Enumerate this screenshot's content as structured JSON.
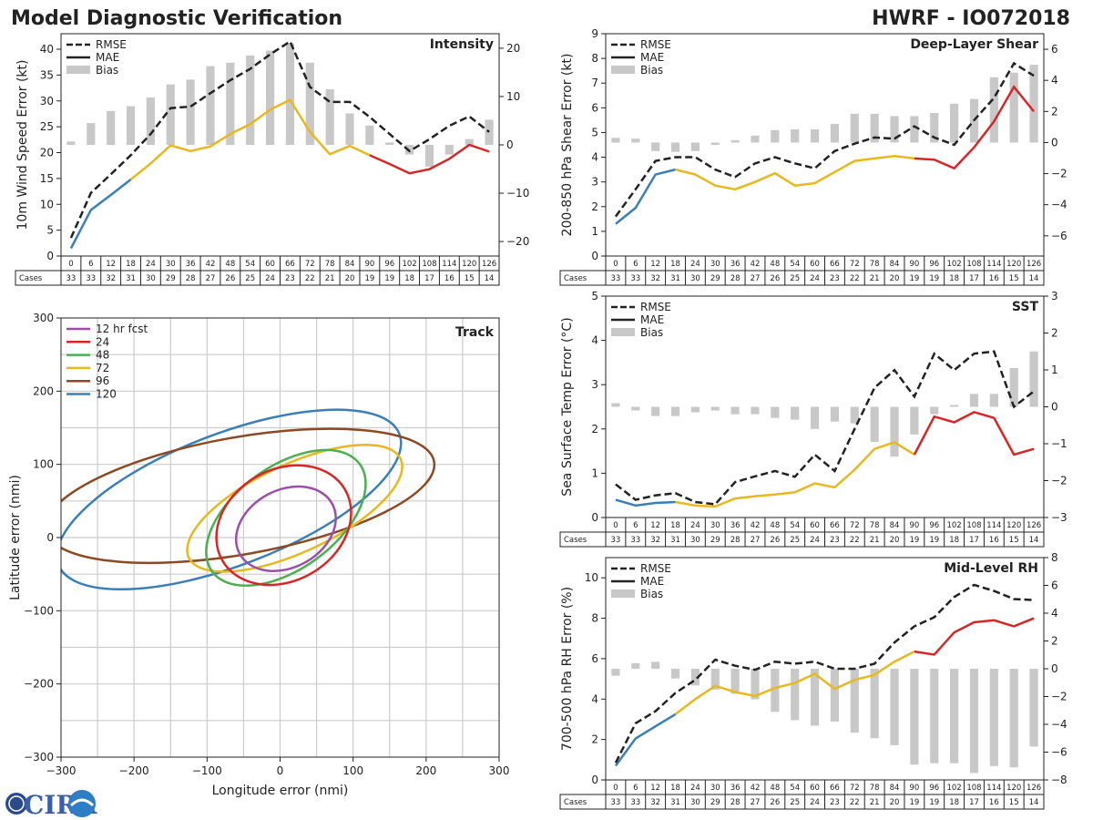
{
  "header": {
    "title": "Model Diagnostic Verification",
    "storm": "HWRF - IO072018"
  },
  "legend_labels": {
    "rmse": "RMSE",
    "mae": "MAE",
    "bias": "Bias"
  },
  "colors": {
    "rmse": "#222222",
    "bias": "#c8c8c8",
    "mae_early": "#3a7fb8",
    "mae_mid": "#e8b820",
    "mae_late": "#d62728",
    "track": {
      "12": "#9b4fa8",
      "24": "#d62728",
      "48": "#4caf50",
      "72": "#e8b820",
      "96": "#8b4a24",
      "120": "#3a7fb8"
    }
  },
  "table": {
    "row_label": "Cases",
    "lead_hours": [
      0,
      6,
      12,
      18,
      24,
      30,
      36,
      42,
      48,
      54,
      60,
      66,
      72,
      78,
      84,
      90,
      96,
      102,
      108,
      114,
      120,
      126
    ],
    "cases": [
      33,
      33,
      32,
      31,
      30,
      29,
      28,
      27,
      26,
      25,
      24,
      23,
      22,
      21,
      20,
      19,
      19,
      18,
      17,
      16,
      15,
      14
    ]
  },
  "logo": {
    "text": "CIRA"
  },
  "chart_data": [
    {
      "id": "intensity",
      "type": "line",
      "title": "Intensity",
      "ylabel": "10m Wind Speed Error (kt)",
      "ylim": [
        0,
        43
      ],
      "yticks": [
        0,
        5,
        10,
        15,
        20,
        25,
        30,
        35,
        40
      ],
      "y2lim": [
        -23,
        23
      ],
      "y2ticks": [
        -20,
        -10,
        0,
        10,
        20
      ],
      "mae_split": [
        3,
        15
      ],
      "rmse": [
        3.5,
        12.2,
        15.8,
        19.5,
        23.6,
        28.6,
        28.9,
        31.5,
        34.0,
        36.2,
        39.0,
        41.5,
        32.7,
        29.8,
        29.8,
        26.9,
        23.6,
        20.3,
        22.6,
        25.2,
        27.0,
        24.0
      ],
      "mae": [
        1.5,
        8.9,
        11.8,
        14.8,
        17.9,
        21.4,
        20.3,
        21.2,
        23.6,
        25.5,
        28.3,
        30.2,
        24.0,
        19.7,
        21.3,
        19.5,
        17.8,
        16.0,
        16.8,
        18.8,
        21.5,
        20.2
      ],
      "bias": [
        0.7,
        4.5,
        7.0,
        8.0,
        9.8,
        12.5,
        13.5,
        16.3,
        17.0,
        18.5,
        19.5,
        21.0,
        17.0,
        11.5,
        6.5,
        4.0,
        0.5,
        -2.0,
        -4.5,
        -2.0,
        1.2,
        5.2
      ]
    },
    {
      "id": "shear",
      "type": "line",
      "title": "Deep-Layer Shear",
      "ylabel": "200-850 hPa Shear Error (kt)",
      "ylim": [
        0,
        9
      ],
      "yticks": [
        0,
        1,
        2,
        3,
        4,
        5,
        6,
        7,
        8,
        9
      ],
      "y2lim": [
        -7.3,
        7.0
      ],
      "y2ticks": [
        -6,
        -4,
        -2,
        0,
        2,
        4,
        6
      ],
      "mae_split": [
        3,
        15
      ],
      "rmse": [
        1.6,
        2.7,
        3.85,
        4.0,
        4.0,
        3.5,
        3.2,
        3.75,
        4.0,
        3.75,
        3.55,
        4.25,
        4.55,
        4.8,
        4.75,
        5.25,
        4.8,
        4.5,
        5.5,
        6.4,
        7.8,
        7.3
      ],
      "mae": [
        1.3,
        1.95,
        3.3,
        3.5,
        3.3,
        2.85,
        2.7,
        3.0,
        3.35,
        2.85,
        2.95,
        3.4,
        3.85,
        3.95,
        4.05,
        3.95,
        3.9,
        3.55,
        4.4,
        5.45,
        6.85,
        5.85
      ],
      "bias": [
        0.3,
        0.25,
        -0.55,
        -0.6,
        -0.55,
        -0.15,
        0.15,
        0.45,
        0.8,
        0.85,
        0.85,
        1.2,
        1.85,
        1.85,
        1.7,
        1.7,
        1.9,
        2.5,
        2.8,
        4.2,
        4.5,
        5.0
      ]
    },
    {
      "id": "sst",
      "type": "line",
      "title": "SST",
      "ylabel": "Sea Surface Temp Error (°C)",
      "ylim": [
        0,
        5
      ],
      "yticks": [
        0,
        1,
        2,
        3,
        4,
        5
      ],
      "y2lim": [
        -3,
        3
      ],
      "y2ticks": [
        -3,
        -2,
        -1,
        0,
        1,
        2,
        3
      ],
      "mae_split": [
        3,
        15
      ],
      "rmse": [
        0.75,
        0.4,
        0.5,
        0.55,
        0.35,
        0.3,
        0.8,
        0.93,
        1.05,
        0.92,
        1.42,
        1.05,
        2.0,
        2.93,
        3.33,
        2.73,
        3.7,
        3.33,
        3.7,
        3.75,
        2.5,
        2.85
      ],
      "mae": [
        0.4,
        0.27,
        0.33,
        0.35,
        0.27,
        0.25,
        0.43,
        0.48,
        0.52,
        0.57,
        0.77,
        0.68,
        1.08,
        1.55,
        1.7,
        1.42,
        2.28,
        2.15,
        2.38,
        2.25,
        1.42,
        1.55
      ],
      "bias": [
        0.1,
        -0.1,
        -0.25,
        -0.25,
        -0.15,
        -0.1,
        -0.2,
        -0.2,
        -0.3,
        -0.35,
        -0.6,
        -0.4,
        -0.45,
        -0.95,
        -1.35,
        -0.75,
        -0.2,
        0.05,
        0.35,
        0.35,
        1.05,
        1.5
      ]
    },
    {
      "id": "rh",
      "type": "line",
      "title": "Mid-Level RH",
      "ylabel": "700-500 hPa RH Error (%)",
      "ylim": [
        0,
        11
      ],
      "yticks": [
        0,
        2,
        4,
        6,
        8,
        10
      ],
      "y2lim": [
        -8,
        8
      ],
      "y2ticks": [
        -8,
        -6,
        -4,
        -2,
        0,
        2,
        4,
        6,
        8
      ],
      "mae_split": [
        3,
        15
      ],
      "rmse": [
        0.85,
        2.8,
        3.4,
        4.3,
        4.95,
        5.95,
        5.65,
        5.45,
        5.85,
        5.75,
        5.85,
        5.5,
        5.5,
        5.75,
        6.8,
        7.6,
        8.05,
        9.05,
        9.65,
        9.35,
        8.95,
        8.9
      ],
      "mae": [
        0.7,
        2.05,
        2.65,
        3.25,
        4.0,
        4.65,
        4.35,
        4.15,
        4.55,
        4.8,
        5.25,
        4.5,
        4.95,
        5.2,
        5.85,
        6.35,
        6.2,
        7.3,
        7.8,
        7.9,
        7.6,
        8.0
      ],
      "bias": [
        -0.5,
        0.4,
        0.5,
        -0.7,
        -1.2,
        -1.5,
        -1.8,
        -2.2,
        -3.1,
        -3.7,
        -4.1,
        -3.8,
        -4.6,
        -5.0,
        -5.5,
        -6.9,
        -6.8,
        -6.8,
        -7.5,
        -7.0,
        -7.1,
        -5.6
      ]
    },
    {
      "id": "track",
      "type": "scatter",
      "title": "Track",
      "xlabel": "Longitude error (nmi)",
      "ylabel": "Latitude error (nmi)",
      "xlim": [
        -300,
        300
      ],
      "ylim": [
        -300,
        300
      ],
      "ticks": [
        -300,
        -200,
        -100,
        0,
        100,
        200,
        300
      ],
      "grid": [
        -250,
        -200,
        -150,
        -100,
        -50,
        0,
        50,
        100,
        150,
        200,
        250
      ],
      "legend": [
        "12 hr fcst",
        "24",
        "48",
        "72",
        "96",
        "120"
      ],
      "ellipses": [
        {
          "name": "12 hr fcst",
          "key": "12",
          "cx": 8,
          "cy": 12,
          "rx": 72,
          "ry": 53,
          "angle": 28
        },
        {
          "name": "24",
          "key": "24",
          "cx": 5,
          "cy": 17,
          "rx": 97,
          "ry": 76,
          "angle": 30
        },
        {
          "name": "48",
          "key": "48",
          "cx": 8,
          "cy": 27,
          "rx": 125,
          "ry": 70,
          "angle": 36
        },
        {
          "name": "72",
          "key": "72",
          "cx": 20,
          "cy": 40,
          "rx": 160,
          "ry": 60,
          "angle": 25
        },
        {
          "name": "96",
          "key": "96",
          "cx": -55,
          "cy": 57,
          "rx": 270,
          "ry": 80,
          "angle": 10
        },
        {
          "name": "120",
          "key": "120",
          "cx": -70,
          "cy": 52,
          "rx": 250,
          "ry": 90,
          "angle": 21
        }
      ]
    }
  ]
}
